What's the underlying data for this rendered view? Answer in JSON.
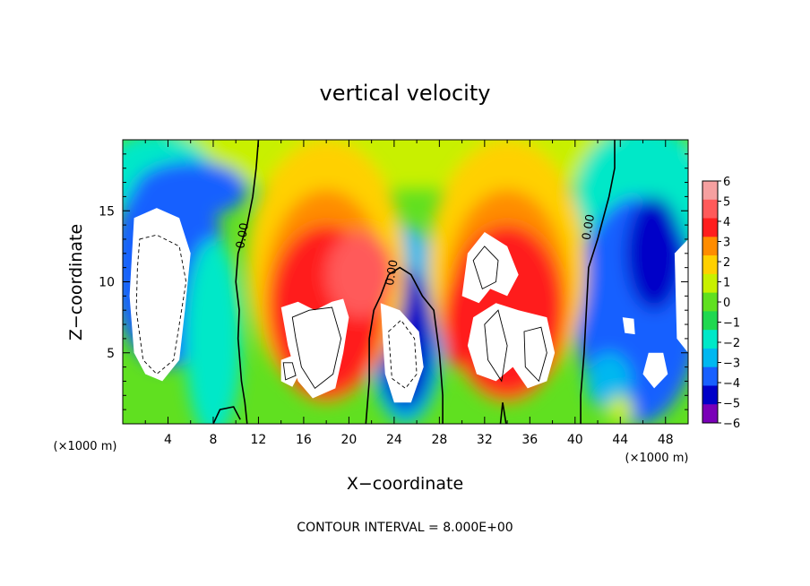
{
  "chart_data": {
    "type": "heatmap",
    "title": "vertical velocity",
    "xlabel": "X−coordinate",
    "ylabel": "Z−coordinate",
    "x_unit_label": "(×1000 m)",
    "xlim": [
      0,
      50
    ],
    "ylim": [
      0,
      20
    ],
    "x_ticks": [
      4,
      8,
      12,
      16,
      20,
      24,
      28,
      32,
      36,
      40,
      44,
      48
    ],
    "y_ticks": [
      5,
      10,
      15
    ],
    "colorbar": {
      "levels": [
        6,
        5,
        4,
        3,
        2,
        1,
        0,
        -1,
        -2,
        -3,
        -4,
        -5,
        -6
      ],
      "labels": [
        "6",
        "5",
        "4",
        "3",
        "2",
        "1",
        "0",
        "−1",
        "−2",
        "−3",
        "−4",
        "−5",
        "−6"
      ],
      "colors": [
        "#f5a0a0",
        "#ff5a5a",
        "#ff1e1e",
        "#ff8c00",
        "#ffd000",
        "#c8f000",
        "#60e020",
        "#20d850",
        "#00e8c8",
        "#00b8f0",
        "#1860ff",
        "#0000c8",
        "#7a00b8"
      ]
    },
    "contour_labels": [
      "0.00",
      "0.00",
      "0.00"
    ],
    "footer": "CONTOUR INTERVAL = 8.000E+00",
    "features": [
      {
        "kind": "updraft",
        "x": 18,
        "z": 6,
        "peak": 14
      },
      {
        "kind": "updraft",
        "x": 34,
        "z": 6,
        "peak": 14
      },
      {
        "kind": "downdraft",
        "x": 3,
        "z": 10,
        "peak": -14
      },
      {
        "kind": "downdraft",
        "x": 25,
        "z": 4,
        "peak": -12
      }
    ]
  }
}
